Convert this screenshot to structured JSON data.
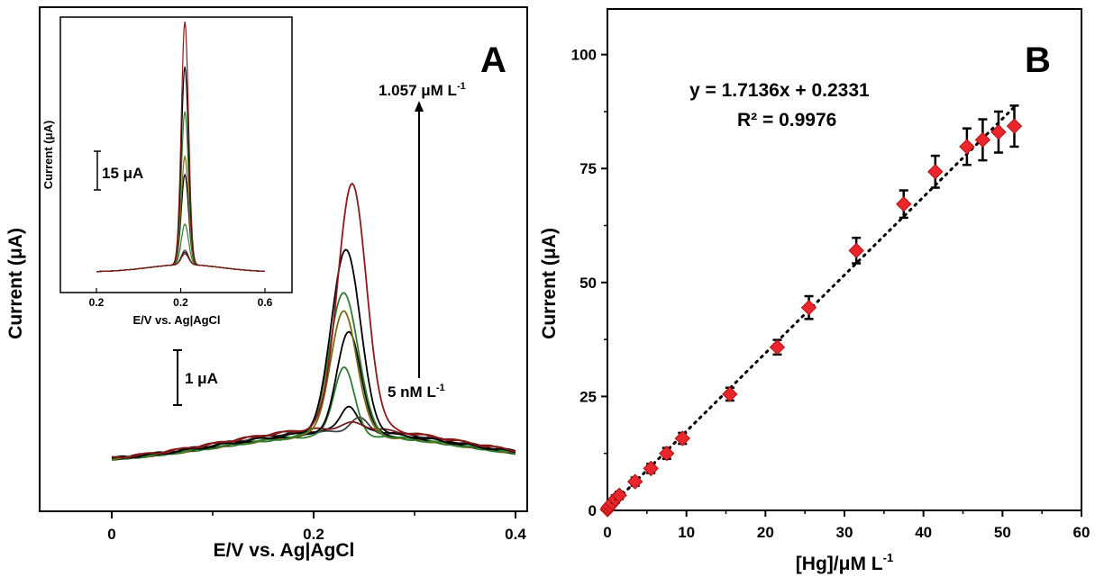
{
  "chart_data": [
    {
      "panel_label": "A",
      "type": "line",
      "xlabel": "E/V vs. Ag|AgCl",
      "ylabel": "Current (μA)",
      "xlim": [
        -0.07,
        0.4
      ],
      "x_ticks": [
        "0",
        "0.2",
        "0.4"
      ],
      "scale_bar_label": "1 μA",
      "annotation_high": "1.057 μM L",
      "annotation_high_sup": "-1",
      "annotation_low": "5 nM L",
      "annotation_low_sup": "-1",
      "series": [
        {
          "color": "#000000",
          "peak_x": 0.235,
          "peak_height": 0.45,
          "baseline_at_peak": 0.59
        },
        {
          "color": "#444444",
          "peak_x": 0.245,
          "peak_height": 0.25,
          "baseline_at_peak": 0.56
        },
        {
          "color": "#2e7d32",
          "peak_x": 0.23,
          "peak_height": 1.25,
          "baseline_at_peak": 0.5
        },
        {
          "color": "#7b1b1b",
          "peak_x": 0.24,
          "peak_height": 0.1,
          "baseline_at_peak": 0.62
        },
        {
          "color": "#000000",
          "peak_x": 0.235,
          "peak_height": 1.85,
          "baseline_at_peak": 0.52
        },
        {
          "color": "#7a6a10",
          "peak_x": 0.23,
          "peak_height": 2.25,
          "baseline_at_peak": 0.5
        },
        {
          "color": "#2e7d32",
          "peak_x": 0.23,
          "peak_height": 2.6,
          "baseline_at_peak": 0.5
        },
        {
          "color": "#000000",
          "peak_x": 0.232,
          "peak_height": 3.35,
          "baseline_at_peak": 0.55
        },
        {
          "color": "#8b1a1a",
          "peak_x": 0.238,
          "peak_height": 4.45,
          "baseline_at_peak": 0.62
        }
      ],
      "inset": {
        "xlabel": "E/V vs. Ag|AgCl",
        "ylabel": "Current (μA)",
        "x_ticks": [
          "0.2",
          "0.2",
          "0.6"
        ],
        "scale_bar_label": "15 μA"
      }
    },
    {
      "panel_label": "B",
      "type": "scatter",
      "xlabel": "[Hg]/μM L",
      "xlabel_sup": "-1",
      "ylabel": "Current (μA)",
      "xlim": [
        0,
        60
      ],
      "ylim": [
        0,
        110
      ],
      "x_ticks": [
        0,
        10,
        20,
        30,
        40,
        50,
        60
      ],
      "y_ticks": [
        0,
        25,
        50,
        75,
        100
      ],
      "equation": "y = 1.7136x + 0.2331",
      "r_squared": "R² = 0.9976",
      "fit": {
        "slope": 1.7136,
        "intercept": 0.2331
      },
      "marker_color": "#e8262b",
      "points": [
        {
          "x": 0.005,
          "y": 0.2,
          "err": 0.5
        },
        {
          "x": 0.1,
          "y": 0.6,
          "err": 0.6
        },
        {
          "x": 0.3,
          "y": 1.0,
          "err": 0.6
        },
        {
          "x": 0.6,
          "y": 1.6,
          "err": 0.6
        },
        {
          "x": 1.0,
          "y": 2.5,
          "err": 0.8
        },
        {
          "x": 1.5,
          "y": 3.3,
          "err": 0.8
        },
        {
          "x": 3.5,
          "y": 6.3,
          "err": 0.9
        },
        {
          "x": 5.5,
          "y": 9.2,
          "err": 1.0
        },
        {
          "x": 7.5,
          "y": 12.5,
          "err": 1.2
        },
        {
          "x": 9.5,
          "y": 15.8,
          "err": 1.2
        },
        {
          "x": 15.5,
          "y": 25.5,
          "err": 1.4
        },
        {
          "x": 21.5,
          "y": 35.8,
          "err": 1.6
        },
        {
          "x": 25.5,
          "y": 44.5,
          "err": 2.5
        },
        {
          "x": 31.5,
          "y": 57.0,
          "err": 2.8
        },
        {
          "x": 37.5,
          "y": 67.2,
          "err": 3.0
        },
        {
          "x": 41.5,
          "y": 74.3,
          "err": 3.5
        },
        {
          "x": 45.5,
          "y": 79.8,
          "err": 4.0
        },
        {
          "x": 47.5,
          "y": 81.3,
          "err": 4.5
        },
        {
          "x": 49.5,
          "y": 83.0,
          "err": 4.5
        },
        {
          "x": 51.5,
          "y": 84.3,
          "err": 4.5
        }
      ]
    }
  ]
}
